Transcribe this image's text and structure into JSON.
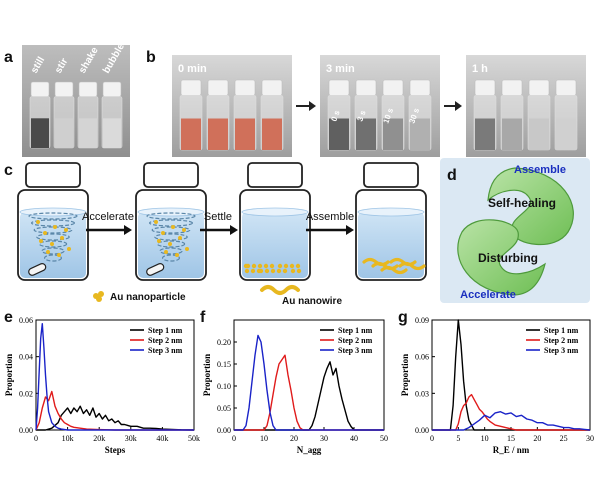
{
  "panels": {
    "a": {
      "label": "a",
      "vial_labels": [
        "still",
        "stir",
        "shake",
        "bubble"
      ]
    },
    "b": {
      "label": "b",
      "stages": [
        {
          "title": "0 min",
          "vial_labels": []
        },
        {
          "title": "3 min",
          "vial_labels": [
            "0 s",
            "3 s",
            "10 s",
            "30 s"
          ]
        },
        {
          "title": "1 h",
          "vial_labels": []
        }
      ]
    },
    "c": {
      "label": "c",
      "arrows": [
        "Accelerate",
        "Settle",
        "Assemble"
      ],
      "legend": {
        "particle": "Au nanoparticle",
        "wire": "Au nanowire"
      }
    },
    "d": {
      "label": "d",
      "words": {
        "top": "Assemble",
        "upper": "Self-healing",
        "lower": "Disturbing",
        "bottom": "Accelerate"
      },
      "colors": {
        "text_blue": "#1a2fbf",
        "leaf": "#8fd07a",
        "bg": "#dbe8f3"
      }
    },
    "e": {
      "label": "e"
    },
    "f": {
      "label": "f"
    },
    "g": {
      "label": "g"
    }
  },
  "series_colors": {
    "step1": "#000000",
    "step2": "#e01b1b",
    "step3": "#1a23c8"
  },
  "chart_data": [
    {
      "id": "e",
      "type": "line",
      "title": "",
      "xlabel": "Steps",
      "ylabel": "Proportion",
      "xlim": [
        0,
        50000
      ],
      "ylim": [
        0,
        0.06
      ],
      "xticks": [
        0,
        10000,
        20000,
        30000,
        40000,
        50000
      ],
      "xticklabels": [
        "0",
        "10k",
        "20k",
        "30k",
        "40k",
        "50k"
      ],
      "yticks": [
        0,
        0.02,
        0.04,
        0.06
      ],
      "yticklabels": [
        "0.00",
        "0.02",
        "0.04",
        "0.06"
      ],
      "legend": [
        "Step 1 nm",
        "Step 2 nm",
        "Step 3 nm"
      ],
      "series": [
        {
          "name": "Step 1 nm",
          "x": [
            0,
            3000,
            5000,
            7000,
            8000,
            9000,
            10000,
            11000,
            12000,
            13000,
            14000,
            15000,
            16000,
            17000,
            18000,
            19000,
            20000,
            21000,
            22000,
            23000,
            24000,
            25000,
            26000,
            27000,
            28000,
            30000,
            32000,
            34000,
            36000,
            38000,
            40000,
            43000,
            46000,
            50000
          ],
          "y": [
            0,
            0,
            0.001,
            0.004,
            0.008,
            0.01,
            0.012,
            0.009,
            0.012,
            0.01,
            0.013,
            0.009,
            0.011,
            0.008,
            0.012,
            0.007,
            0.009,
            0.006,
            0.008,
            0.005,
            0.006,
            0.004,
            0.005,
            0.003,
            0.003,
            0.002,
            0.002,
            0.001,
            0.001,
            0.0008,
            0.0005,
            0.0003,
            0.0001,
            0
          ]
        },
        {
          "name": "Step 2 nm",
          "x": [
            0,
            1000,
            2000,
            3000,
            4000,
            5000,
            6000,
            7000,
            8000,
            9000,
            10000,
            11000,
            12000,
            14000,
            16000,
            20000,
            25000,
            50000
          ],
          "y": [
            0,
            0.004,
            0.012,
            0.018,
            0.016,
            0.021,
            0.013,
            0.009,
            0.006,
            0.004,
            0.003,
            0.002,
            0.0015,
            0.001,
            0.0005,
            0.0002,
            0,
            0
          ]
        },
        {
          "name": "Step 3 nm",
          "x": [
            0,
            500,
            1000,
            1500,
            2000,
            2500,
            3000,
            3500,
            4000,
            5000,
            6000,
            7000,
            8000,
            10000,
            50000
          ],
          "y": [
            0,
            0.012,
            0.032,
            0.05,
            0.058,
            0.045,
            0.03,
            0.018,
            0.01,
            0.004,
            0.002,
            0.001,
            0.0005,
            0,
            0
          ]
        }
      ]
    },
    {
      "id": "f",
      "type": "line",
      "title": "",
      "xlabel": "N_agg",
      "ylabel": "Proportion",
      "xlim": [
        0,
        50
      ],
      "ylim": [
        0,
        0.25
      ],
      "xticks": [
        0,
        10,
        20,
        30,
        40,
        50
      ],
      "xticklabels": [
        "0",
        "10",
        "20",
        "30",
        "40",
        "50"
      ],
      "yticks": [
        0,
        0.05,
        0.1,
        0.15,
        0.2
      ],
      "yticklabels": [
        "0.00",
        "0.05",
        "0.10",
        "0.15",
        "0.20"
      ],
      "legend": [
        "Step 1 nm",
        "Step 2 nm",
        "Step 3 nm"
      ],
      "series": [
        {
          "name": "Step 1 nm",
          "x": [
            0,
            25,
            26,
            27,
            28,
            29,
            30,
            31,
            32,
            33,
            34,
            35,
            36,
            37,
            38,
            39,
            40,
            50
          ],
          "y": [
            0,
            0,
            0.01,
            0.03,
            0.06,
            0.09,
            0.12,
            0.14,
            0.155,
            0.125,
            0.14,
            0.1,
            0.07,
            0.045,
            0.02,
            0.008,
            0,
            0
          ]
        },
        {
          "name": "Step 2 nm",
          "x": [
            0,
            10,
            11,
            12,
            13,
            14,
            15,
            16,
            17,
            18,
            19,
            20,
            21,
            22,
            23,
            50
          ],
          "y": [
            0,
            0,
            0.01,
            0.04,
            0.08,
            0.12,
            0.15,
            0.16,
            0.17,
            0.125,
            0.09,
            0.05,
            0.02,
            0.005,
            0,
            0
          ]
        },
        {
          "name": "Step 3 nm",
          "x": [
            0,
            3,
            4,
            5,
            6,
            7,
            8,
            9,
            10,
            11,
            12,
            13,
            14,
            50
          ],
          "y": [
            0,
            0,
            0.01,
            0.05,
            0.11,
            0.17,
            0.215,
            0.2,
            0.15,
            0.09,
            0.04,
            0.01,
            0,
            0
          ]
        }
      ]
    },
    {
      "id": "g",
      "type": "line",
      "title": "",
      "xlabel": "R_E / nm",
      "ylabel": "Proportion",
      "xlim": [
        0,
        30
      ],
      "ylim": [
        0,
        0.09
      ],
      "xticks": [
        0,
        5,
        10,
        15,
        20,
        25,
        30
      ],
      "xticklabels": [
        "0",
        "5",
        "10",
        "15",
        "20",
        "25",
        "30"
      ],
      "yticks": [
        0,
        0.03,
        0.06,
        0.09
      ],
      "yticklabels": [
        "0.00",
        "0.03",
        "0.06",
        "0.09"
      ],
      "legend": [
        "Step 1 nm",
        "Step 2 nm",
        "Step 3 nm"
      ],
      "series": [
        {
          "name": "Step 1 nm",
          "x": [
            0,
            3.5,
            4,
            4.5,
            5,
            5.5,
            6,
            6.5,
            7,
            8,
            30
          ],
          "y": [
            0,
            0,
            0.02,
            0.06,
            0.09,
            0.07,
            0.04,
            0.02,
            0.008,
            0,
            0
          ]
        },
        {
          "name": "Step 2 nm",
          "x": [
            0,
            4.5,
            5,
            5.5,
            6,
            6.5,
            7,
            7.5,
            8,
            8.5,
            9,
            9.5,
            10,
            10.5,
            11,
            12,
            13,
            14,
            15,
            16,
            30
          ],
          "y": [
            0,
            0,
            0.005,
            0.015,
            0.02,
            0.022,
            0.027,
            0.029,
            0.025,
            0.021,
            0.017,
            0.015,
            0.012,
            0.009,
            0.007,
            0.004,
            0.003,
            0.002,
            0.001,
            0,
            0
          ]
        },
        {
          "name": "Step 3 nm",
          "x": [
            0,
            6,
            7,
            8,
            9,
            10,
            11,
            12,
            13,
            14,
            15,
            16,
            17,
            18,
            19,
            20,
            21,
            22,
            23,
            24,
            25,
            26,
            27,
            28,
            29,
            30
          ],
          "y": [
            0,
            0,
            0.002,
            0.005,
            0.008,
            0.012,
            0.01,
            0.014,
            0.015,
            0.013,
            0.014,
            0.011,
            0.012,
            0.009,
            0.008,
            0.006,
            0.006,
            0.004,
            0.004,
            0.003,
            0.002,
            0.002,
            0.001,
            0.001,
            0.0005,
            0
          ]
        }
      ]
    }
  ]
}
